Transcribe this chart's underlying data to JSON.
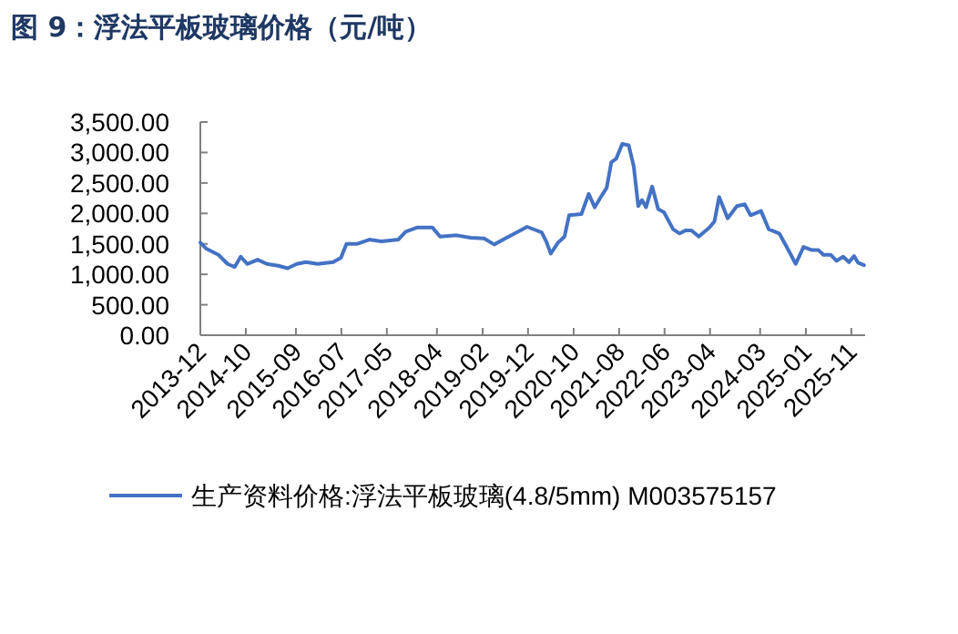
{
  "chart_data": {
    "type": "line",
    "title": "图 9：浮法平板玻璃价格（元/吨）",
    "legend": "bottom",
    "line_style": "solid",
    "xlim": [
      "2013-12",
      "2026-02"
    ],
    "xticks": [
      "2013-12",
      "2014-10",
      "2015-09",
      "2016-07",
      "2017-05",
      "2018-04",
      "2019-02",
      "2019-12",
      "2020-10",
      "2021-08",
      "2022-06",
      "2023-04",
      "2024-03",
      "2025-01",
      "2025-11"
    ],
    "ylim": [
      0,
      3500
    ],
    "yticks": [
      {
        "value": 0,
        "label": "0.00"
      },
      {
        "value": 500,
        "label": "500.00"
      },
      {
        "value": 1000,
        "label": "1,000.00"
      },
      {
        "value": 1500,
        "label": "1,500.00"
      },
      {
        "value": 2000,
        "label": "2,000.00"
      },
      {
        "value": 2500,
        "label": "2,500.00"
      },
      {
        "value": 3000,
        "label": "3,000.00"
      },
      {
        "value": 3500,
        "label": "3,500.00"
      }
    ],
    "series": [
      {
        "name": "生产资料价格:浮法平板玻璃(4.8/5mm) M003575157",
        "color": "#4472c4",
        "x": [
          "2013-12-01",
          "2014-01-10",
          "2014-04-01",
          "2014-06-01",
          "2014-07-19",
          "2014-08-28",
          "2014-10-10",
          "2014-12-19",
          "2015-02-19",
          "2015-05-07",
          "2015-07-07",
          "2015-09-07",
          "2015-11-07",
          "2016-01-25",
          "2016-05-07",
          "2016-06-28",
          "2016-08-04",
          "2016-10-16",
          "2017-01-04",
          "2017-03-25",
          "2017-07-16",
          "2017-09-04",
          "2017-11-22",
          "2018-03-01",
          "2018-04-22",
          "2018-08-10",
          "2018-11-13",
          "2019-02-10",
          "2019-04-19",
          "2019-07-19",
          "2019-11-25",
          "2020-03-01",
          "2020-04-01",
          "2020-05-01",
          "2020-06-19",
          "2020-08-01",
          "2020-09-01",
          "2020-11-22",
          "2021-01-10",
          "2021-02-19",
          "2021-04-01",
          "2021-05-10",
          "2021-06-10",
          "2021-07-13",
          "2021-08-22",
          "2021-10-04",
          "2021-11-07",
          "2021-12-07",
          "2022-01-01",
          "2022-01-28",
          "2022-03-10",
          "2022-04-19",
          "2022-05-28",
          "2022-07-28",
          "2022-09-10",
          "2022-10-19",
          "2022-11-28",
          "2023-01-16",
          "2023-03-28",
          "2023-05-01",
          "2023-06-01",
          "2023-07-28",
          "2023-09-28",
          "2023-11-19",
          "2023-12-28",
          "2024-03-07",
          "2024-04-28",
          "2024-07-07",
          "2024-08-28",
          "2024-10-25",
          "2024-12-16",
          "2025-02-07",
          "2025-03-25",
          "2025-04-28",
          "2025-06-16",
          "2025-07-25",
          "2025-09-07",
          "2025-10-16",
          "2025-11-19",
          "2025-12-16",
          "2026-01-25"
        ],
        "values": [
          1520,
          1420,
          1320,
          1170,
          1120,
          1290,
          1170,
          1240,
          1170,
          1140,
          1100,
          1170,
          1200,
          1170,
          1200,
          1270,
          1500,
          1500,
          1570,
          1540,
          1570,
          1700,
          1770,
          1770,
          1620,
          1640,
          1600,
          1590,
          1490,
          1610,
          1780,
          1690,
          1540,
          1340,
          1520,
          1620,
          1970,
          1990,
          2320,
          2100,
          2270,
          2420,
          2840,
          2900,
          3140,
          3120,
          2770,
          2120,
          2220,
          2100,
          2440,
          2070,
          2020,
          1740,
          1670,
          1720,
          1720,
          1620,
          1770,
          1870,
          2270,
          1920,
          2120,
          2150,
          1970,
          2040,
          1740,
          1670,
          1440,
          1170,
          1450,
          1400,
          1400,
          1320,
          1320,
          1220,
          1290,
          1200,
          1300,
          1190,
          1150
        ]
      }
    ]
  }
}
